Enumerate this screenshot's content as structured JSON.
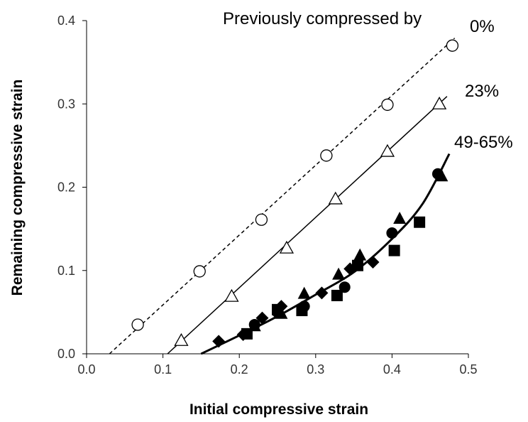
{
  "chart_data": {
    "type": "scatter",
    "xlabel": "Initial compressive strain",
    "ylabel": "Remaining compressive strain",
    "xlim": [
      0.0,
      0.5
    ],
    "ylim": [
      0.0,
      0.4
    ],
    "xticks": [
      "0.0",
      "0.1",
      "0.2",
      "0.3",
      "0.4",
      "0.5"
    ],
    "yticks": [
      "0.0",
      "0.1",
      "0.2",
      "0.3",
      "0.4"
    ],
    "grid": false,
    "annotations": {
      "header": "Previously compressed by",
      "zero": "0%",
      "twentythree": "23%",
      "high": "49-65%"
    },
    "series": [
      {
        "marker": "open-circle",
        "points": [
          [
            0.067,
            0.035
          ],
          [
            0.148,
            0.099
          ],
          [
            0.229,
            0.161
          ],
          [
            0.314,
            0.238
          ],
          [
            0.394,
            0.299
          ],
          [
            0.479,
            0.37
          ]
        ],
        "fit": {
          "style": "dashed",
          "x": [
            0.03,
            0.482
          ],
          "y": [
            0.0,
            0.379
          ]
        }
      },
      {
        "marker": "open-triangle",
        "points": [
          [
            0.124,
            0.016
          ],
          [
            0.19,
            0.069
          ],
          [
            0.262,
            0.127
          ],
          [
            0.326,
            0.186
          ],
          [
            0.394,
            0.243
          ],
          [
            0.462,
            0.3
          ]
        ],
        "fit": {
          "style": "solid",
          "x": [
            0.106,
            0.472
          ],
          "y": [
            0.0,
            0.309
          ]
        }
      },
      {
        "marker": "filled-circle",
        "points": [
          [
            0.22,
            0.035
          ],
          [
            0.25,
            0.05
          ],
          [
            0.285,
            0.057
          ],
          [
            0.338,
            0.08
          ],
          [
            0.4,
            0.145
          ],
          [
            0.46,
            0.216
          ]
        ]
      },
      {
        "marker": "filled-triangle",
        "points": [
          [
            0.22,
            0.033
          ],
          [
            0.255,
            0.048
          ],
          [
            0.285,
            0.072
          ],
          [
            0.33,
            0.095
          ],
          [
            0.358,
            0.118
          ],
          [
            0.41,
            0.162
          ],
          [
            0.465,
            0.213
          ]
        ]
      },
      {
        "marker": "filled-square",
        "points": [
          [
            0.21,
            0.024
          ],
          [
            0.25,
            0.053
          ],
          [
            0.282,
            0.052
          ],
          [
            0.328,
            0.07
          ],
          [
            0.355,
            0.106
          ],
          [
            0.403,
            0.124
          ],
          [
            0.436,
            0.158
          ]
        ]
      },
      {
        "marker": "filled-diamond",
        "points": [
          [
            0.173,
            0.015
          ],
          [
            0.205,
            0.023
          ],
          [
            0.23,
            0.043
          ],
          [
            0.255,
            0.057
          ],
          [
            0.308,
            0.073
          ],
          [
            0.345,
            0.102
          ],
          [
            0.375,
            0.11
          ]
        ]
      }
    ],
    "curve_fit": {
      "style": "bold-solid",
      "x": [
        0.15,
        0.2,
        0.25,
        0.3,
        0.35,
        0.4,
        0.44,
        0.475
      ],
      "y": [
        0.0,
        0.022,
        0.045,
        0.071,
        0.098,
        0.138,
        0.18,
        0.24
      ]
    }
  }
}
